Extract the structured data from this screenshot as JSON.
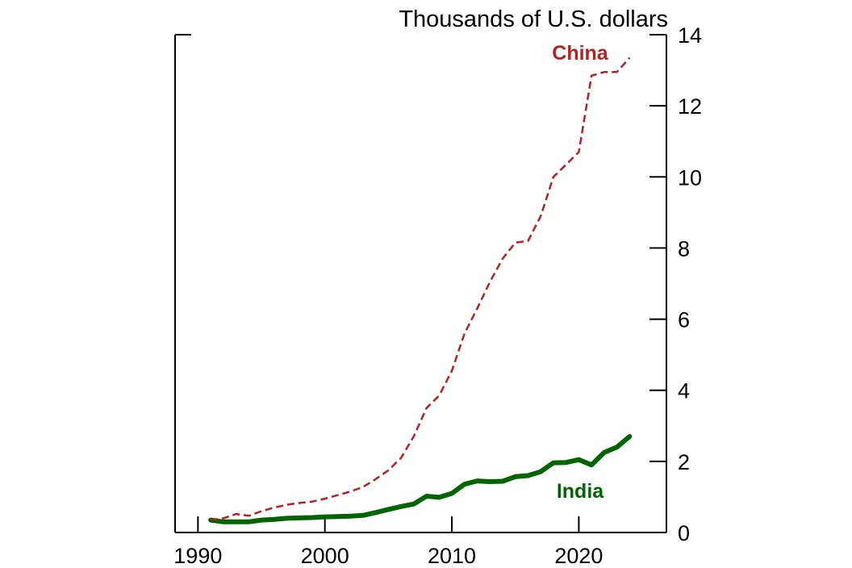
{
  "chart_data": {
    "type": "line",
    "title": "",
    "ylabel": "Thousands of U.S. dollars",
    "xlabel": "",
    "xlim": [
      1988.2,
      2026.9
    ],
    "ylim": [
      0,
      14
    ],
    "x_ticks": [
      1990,
      2000,
      2010,
      2020
    ],
    "y_ticks": [
      0,
      2,
      4,
      6,
      8,
      10,
      12,
      14
    ],
    "grid": false,
    "y_axis_side": "right",
    "x": [
      1991,
      1992,
      1993,
      1994,
      1995,
      1996,
      1997,
      1998,
      1999,
      2000,
      2001,
      2002,
      2003,
      2004,
      2005,
      2006,
      2007,
      2008,
      2009,
      2010,
      2011,
      2012,
      2013,
      2014,
      2015,
      2016,
      2017,
      2018,
      2019,
      2020,
      2021,
      2022,
      2023,
      2024
    ],
    "series": [
      {
        "name": "China",
        "color": "#b22222",
        "style": "dashed",
        "values": [
          0.35,
          0.4,
          0.52,
          0.47,
          0.6,
          0.7,
          0.78,
          0.83,
          0.87,
          0.95,
          1.05,
          1.15,
          1.28,
          1.5,
          1.75,
          2.1,
          2.7,
          3.5,
          3.85,
          4.55,
          5.6,
          6.3,
          7.05,
          7.7,
          8.15,
          8.2,
          8.9,
          10.0,
          10.35,
          10.7,
          12.85,
          12.95,
          12.95,
          13.35
        ]
      },
      {
        "name": "India",
        "color": "#006400",
        "style": "solid",
        "values": [
          0.35,
          0.3,
          0.3,
          0.3,
          0.35,
          0.37,
          0.4,
          0.41,
          0.42,
          0.44,
          0.45,
          0.46,
          0.48,
          0.56,
          0.65,
          0.73,
          0.8,
          1.02,
          0.99,
          1.1,
          1.36,
          1.45,
          1.43,
          1.44,
          1.57,
          1.6,
          1.71,
          1.96,
          1.97,
          2.05,
          1.9,
          2.25,
          2.4,
          2.7
        ]
      }
    ]
  }
}
